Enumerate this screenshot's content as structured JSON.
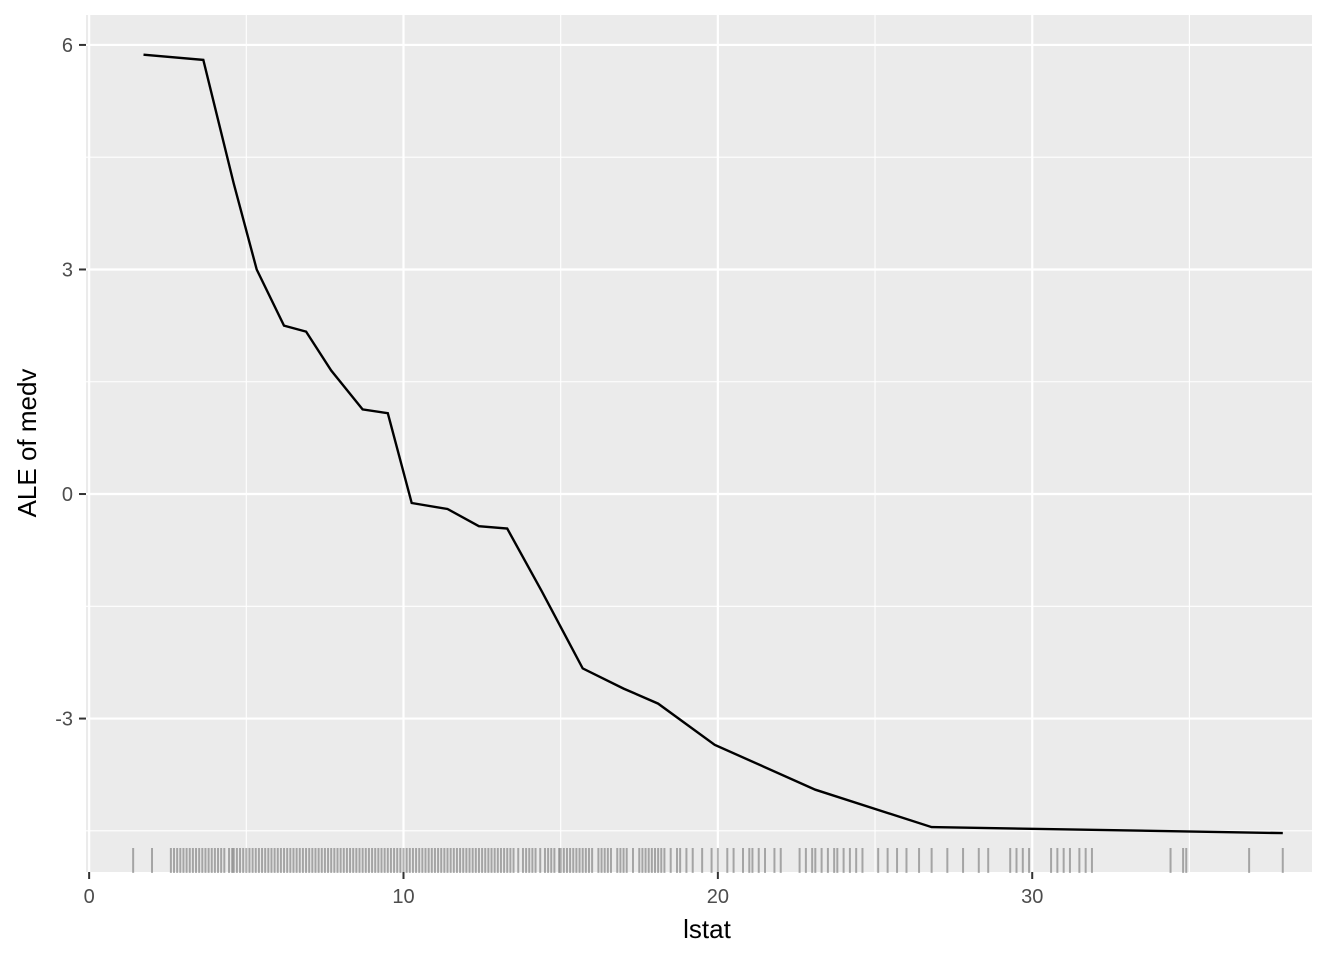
{
  "chart_data": {
    "type": "line",
    "title": "",
    "xlabel": "lstat",
    "ylabel": "ALE of medv",
    "xlim": [
      -0.1,
      38.9
    ],
    "ylim": [
      -5.05,
      6.4
    ],
    "x_ticks": [
      {
        "value": 0,
        "label": "0"
      },
      {
        "value": 10,
        "label": "10"
      },
      {
        "value": 20,
        "label": "20"
      },
      {
        "value": 30,
        "label": "30"
      }
    ],
    "y_ticks": [
      {
        "value": 6,
        "label": "6"
      },
      {
        "value": 3,
        "label": "3"
      },
      {
        "value": 0,
        "label": "0"
      },
      {
        "value": -3,
        "label": "-3"
      }
    ],
    "grid": true,
    "series": [
      {
        "points": [
          [
            1.73,
            5.87
          ],
          [
            3.63,
            5.8
          ],
          [
            4.6,
            4.15
          ],
          [
            5.33,
            3.0
          ],
          [
            6.2,
            2.25
          ],
          [
            6.9,
            2.17
          ],
          [
            7.7,
            1.65
          ],
          [
            8.7,
            1.13
          ],
          [
            9.5,
            1.08
          ],
          [
            10.26,
            -0.12
          ],
          [
            11.4,
            -0.2
          ],
          [
            12.4,
            -0.43
          ],
          [
            13.3,
            -0.46
          ],
          [
            14.4,
            -1.3
          ],
          [
            15.7,
            -2.33
          ],
          [
            17.0,
            -2.6
          ],
          [
            18.1,
            -2.8
          ],
          [
            19.9,
            -3.35
          ],
          [
            23.1,
            -3.95
          ],
          [
            26.8,
            -4.45
          ],
          [
            37.97,
            -4.53
          ]
        ]
      }
    ],
    "rug": [
      1.4,
      2.0,
      2.6,
      2.7,
      2.8,
      2.9,
      3.0,
      3.1,
      3.2,
      3.3,
      3.4,
      3.5,
      3.6,
      3.7,
      3.8,
      3.9,
      4.0,
      4.1,
      4.2,
      4.3,
      4.45,
      4.55,
      4.6,
      4.7,
      4.8,
      4.9,
      5.0,
      5.1,
      5.2,
      5.3,
      5.4,
      5.5,
      5.6,
      5.7,
      5.8,
      5.9,
      6.0,
      6.1,
      6.2,
      6.3,
      6.4,
      6.5,
      6.6,
      6.7,
      6.8,
      6.9,
      7.0,
      7.1,
      7.2,
      7.3,
      7.4,
      7.5,
      7.6,
      7.7,
      7.8,
      7.9,
      8.0,
      8.1,
      8.2,
      8.3,
      8.4,
      8.5,
      8.6,
      8.7,
      8.8,
      8.9,
      9.0,
      9.1,
      9.2,
      9.3,
      9.4,
      9.5,
      9.6,
      9.7,
      9.8,
      9.9,
      10.0,
      10.1,
      10.2,
      10.3,
      10.4,
      10.5,
      10.6,
      10.7,
      10.8,
      10.9,
      11.0,
      11.1,
      11.2,
      11.3,
      11.4,
      11.5,
      11.6,
      11.7,
      11.8,
      11.9,
      12.0,
      12.1,
      12.2,
      12.3,
      12.4,
      12.5,
      12.6,
      12.7,
      12.8,
      12.9,
      13.0,
      13.1,
      13.2,
      13.3,
      13.4,
      13.5,
      13.65,
      13.8,
      13.9,
      14.0,
      14.1,
      14.2,
      14.35,
      14.5,
      14.6,
      14.7,
      14.8,
      14.95,
      15.0,
      15.1,
      15.2,
      15.3,
      15.4,
      15.5,
      15.6,
      15.7,
      15.8,
      15.9,
      16.0,
      16.2,
      16.3,
      16.4,
      16.5,
      16.6,
      16.8,
      16.9,
      17.0,
      17.1,
      17.3,
      17.5,
      17.6,
      17.7,
      17.8,
      17.9,
      18.0,
      18.1,
      18.2,
      18.3,
      18.5,
      18.7,
      18.8,
      19.0,
      19.2,
      19.5,
      19.8,
      20.0,
      20.3,
      20.5,
      20.8,
      21.0,
      21.1,
      21.3,
      21.5,
      21.8,
      22.0,
      22.6,
      22.8,
      23.0,
      23.1,
      23.3,
      23.5,
      23.7,
      23.8,
      24.0,
      24.2,
      24.4,
      24.6,
      25.1,
      25.4,
      25.7,
      26.0,
      26.4,
      26.8,
      27.3,
      27.8,
      28.3,
      28.6,
      29.3,
      29.5,
      29.7,
      29.9,
      30.6,
      30.8,
      31.0,
      31.2,
      31.5,
      31.7,
      31.9,
      34.4,
      34.8,
      34.9,
      36.9,
      37.97
    ]
  }
}
